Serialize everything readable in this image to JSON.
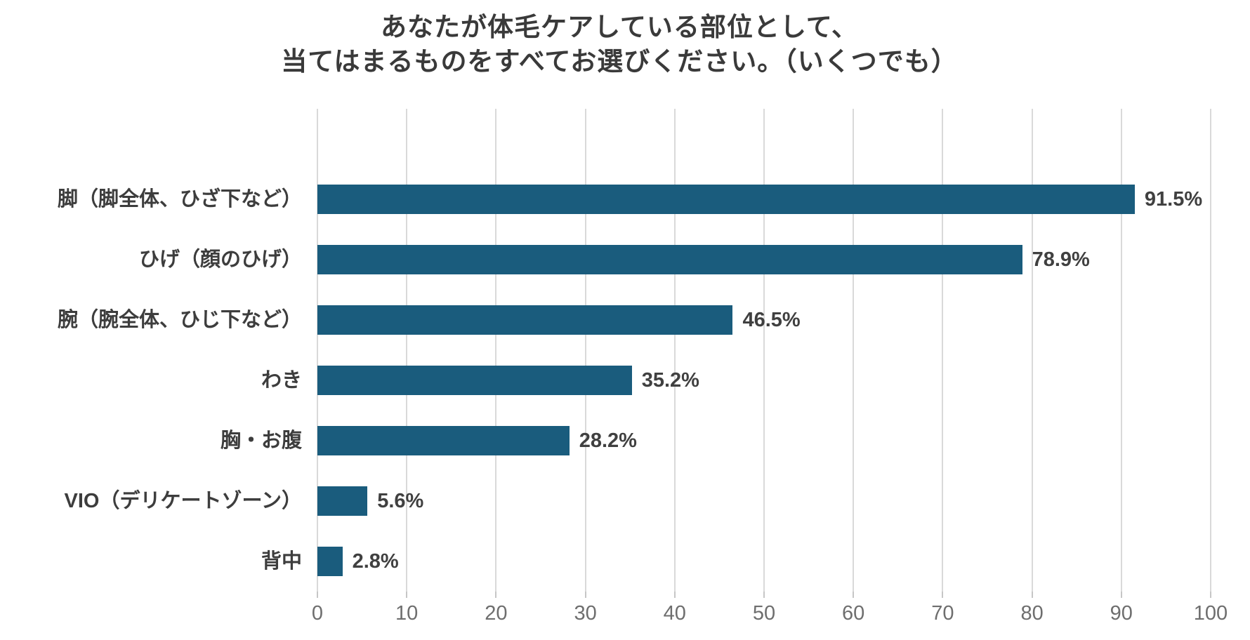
{
  "title": {
    "line1": "あなたが体毛ケアしている部位として、",
    "line2": "当てはまるものをすべてお選びください。（いくつでも）"
  },
  "chart_data": {
    "type": "bar",
    "orientation": "horizontal",
    "title": "あなたが体毛ケアしている部位として、当てはまるものをすべてお選びください。（いくつでも）",
    "categories": [
      "脚（脚全体、ひざ下など）",
      "ひげ（顔のひげ）",
      "腕（腕全体、ひじ下など）",
      "わき",
      "胸・お腹",
      "VIO（デリケートゾーン）",
      "背中"
    ],
    "values": [
      91.5,
      78.9,
      46.5,
      35.2,
      28.2,
      5.6,
      2.8
    ],
    "value_labels": [
      "91.5%",
      "78.9%",
      "46.5%",
      "35.2%",
      "28.2%",
      "5.6%",
      "2.8%"
    ],
    "xlabel": "",
    "ylabel": "",
    "xlim": [
      0,
      100
    ],
    "x_ticks": [
      0,
      10,
      20,
      30,
      40,
      50,
      60,
      70,
      80,
      90,
      100
    ],
    "grid": true,
    "legend": false,
    "bar_color": "#1a5c7d",
    "gridline_color": "#d9d9d9",
    "tick_label_color": "#6e6e6e",
    "value_label_color": "#404040",
    "category_label_color": "#3d3d3d",
    "title_color": "#3a3a3a"
  }
}
